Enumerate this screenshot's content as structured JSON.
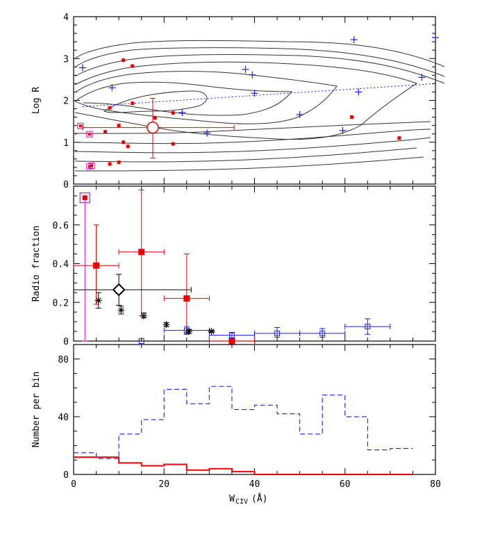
{
  "chart_data": [
    {
      "type": "scatter",
      "panel": "top",
      "ylabel": "Log R",
      "xlim": [
        0,
        80
      ],
      "ylim": [
        0,
        4
      ],
      "yticks": [
        "0",
        "1",
        "2",
        "3",
        "4"
      ],
      "colors": {
        "red": "#ee0000",
        "blue": "#1a1aee",
        "magenta": "#ee00cc",
        "contour": "#333333"
      },
      "red_points": [
        [
          11,
          2.96
        ],
        [
          13,
          2.82
        ],
        [
          13,
          1.93
        ],
        [
          8,
          1.82
        ],
        [
          10,
          1.4
        ],
        [
          7,
          1.25
        ],
        [
          18,
          1.58
        ],
        [
          22,
          1.7
        ],
        [
          11,
          1.0
        ],
        [
          12,
          0.9
        ],
        [
          22,
          0.96
        ],
        [
          10,
          0.52
        ],
        [
          8,
          0.48
        ],
        [
          61.5,
          1.6
        ],
        [
          72,
          1.1
        ]
      ],
      "magenta_points": [
        [
          1.5,
          1.39
        ],
        [
          3.5,
          1.19
        ],
        [
          3.5,
          0.42
        ],
        [
          4,
          0.44
        ]
      ],
      "blue_points": [
        [
          2,
          2.78
        ],
        [
          8.5,
          2.3
        ],
        [
          24,
          1.71
        ],
        [
          29.5,
          1.22
        ],
        [
          38,
          2.74
        ],
        [
          39.5,
          2.61
        ],
        [
          40,
          2.17
        ],
        [
          50,
          1.66
        ],
        [
          59.5,
          1.28
        ],
        [
          62,
          3.45
        ],
        [
          63,
          2.2
        ],
        [
          77,
          2.55
        ],
        [
          80,
          3.5
        ]
      ],
      "mean_point": {
        "x": 17.5,
        "y": 1.35,
        "x_err": [
          2,
          35.5
        ],
        "y_err": [
          0.62,
          2.05
        ]
      },
      "trend_line": [
        [
          2,
          1.85
        ],
        [
          80,
          2.4
        ]
      ]
    },
    {
      "type": "scatter",
      "panel": "middle",
      "ylabel": "Radio fraction",
      "xlim": [
        0,
        80
      ],
      "ylim": [
        0,
        0.8
      ],
      "yticks": [
        "0",
        "0.2",
        "0.4",
        "0.6"
      ],
      "series": [
        {
          "name": "red squares",
          "color": "#ee0000",
          "points": [
            {
              "x": 5,
              "y": 0.39,
              "xlo": 0,
              "xhi": 10,
              "ylo": 0.19,
              "yhi": 0.6
            },
            {
              "x": 15,
              "y": 0.46,
              "xlo": 10,
              "xhi": 20,
              "ylo": 0.13,
              "yhi": 0.78
            },
            {
              "x": 25,
              "y": 0.22,
              "xlo": 20,
              "xhi": 30,
              "ylo": 0.04,
              "yhi": 0.45
            },
            {
              "x": 35,
              "y": 0.0,
              "xlo": 30,
              "xhi": 40,
              "ylo": 0.0,
              "yhi": 0.0
            }
          ]
        },
        {
          "name": "magenta square",
          "color": "#ee00cc",
          "points": [
            {
              "x": 2.5,
              "y": 0.74,
              "xlo": 2.5,
              "xhi": 2.5,
              "ylo": 0.0,
              "yhi": 0.74
            }
          ]
        },
        {
          "name": "blue open squares",
          "color": "#1a1aee",
          "points": [
            {
              "x": 15,
              "y": 0.0,
              "xlo": 15,
              "xhi": 15,
              "ylo": 0.0,
              "yhi": 0.0
            },
            {
              "x": 25,
              "y": 0.055,
              "xlo": 20,
              "xhi": 30,
              "ylo": 0.035,
              "yhi": 0.075
            },
            {
              "x": 35,
              "y": 0.03,
              "xlo": 30,
              "xhi": 40,
              "ylo": 0.015,
              "yhi": 0.045
            },
            {
              "x": 45,
              "y": 0.04,
              "xlo": 40,
              "xhi": 50,
              "ylo": 0.02,
              "yhi": 0.07
            },
            {
              "x": 55,
              "y": 0.04,
              "xlo": 50,
              "xhi": 60,
              "ylo": 0.02,
              "yhi": 0.065
            },
            {
              "x": 65,
              "y": 0.075,
              "xlo": 60,
              "xhi": 70,
              "ylo": 0.035,
              "yhi": 0.115
            }
          ]
        },
        {
          "name": "black asterisks",
          "color": "#000000",
          "points": [
            {
              "x": 5.5,
              "y": 0.21,
              "ylo": 0.17,
              "yhi": 0.25
            },
            {
              "x": 10.5,
              "y": 0.16,
              "ylo": 0.14,
              "yhi": 0.18
            },
            {
              "x": 15.5,
              "y": 0.13,
              "ylo": 0.12,
              "yhi": 0.145
            },
            {
              "x": 20.5,
              "y": 0.085,
              "ylo": 0.075,
              "yhi": 0.095
            },
            {
              "x": 25.5,
              "y": 0.05,
              "ylo": 0.04,
              "yhi": 0.06
            },
            {
              "x": 30.5,
              "y": 0.05,
              "ylo": 0.045,
              "yhi": 0.055
            }
          ]
        },
        {
          "name": "black diamond",
          "color": "#000000",
          "points": [
            {
              "x": 10,
              "y": 0.265,
              "xlo": 0,
              "xhi": 26,
              "ylo": 0.185,
              "yhi": 0.345
            }
          ]
        }
      ]
    },
    {
      "type": "step",
      "panel": "bottom",
      "ylabel": "Number per bin",
      "xlabel_main": "W",
      "xlabel_sub": "CIV",
      "xlabel_unit": "(Å)",
      "xlim": [
        0,
        80
      ],
      "ylim": [
        0,
        90
      ],
      "xticks": [
        "0",
        "20",
        "40",
        "60",
        "80"
      ],
      "yticks": [
        "0",
        "40",
        "80"
      ],
      "bin_edges": [
        0,
        5,
        10,
        15,
        20,
        25,
        30,
        35,
        40,
        45,
        50,
        55,
        60,
        65,
        70,
        75
      ],
      "series": [
        {
          "name": "all",
          "color": "#1a1aee",
          "style": "dashed",
          "values": [
            15,
            11,
            28,
            38,
            59,
            49,
            61,
            45,
            48,
            42,
            28,
            55,
            40,
            17,
            18
          ]
        },
        {
          "name": "radio",
          "color": "#ee0000",
          "style": "solid",
          "values": [
            12,
            12,
            8,
            6,
            7,
            3,
            4,
            2,
            0,
            0,
            0,
            0,
            0,
            0,
            0
          ]
        }
      ]
    }
  ]
}
